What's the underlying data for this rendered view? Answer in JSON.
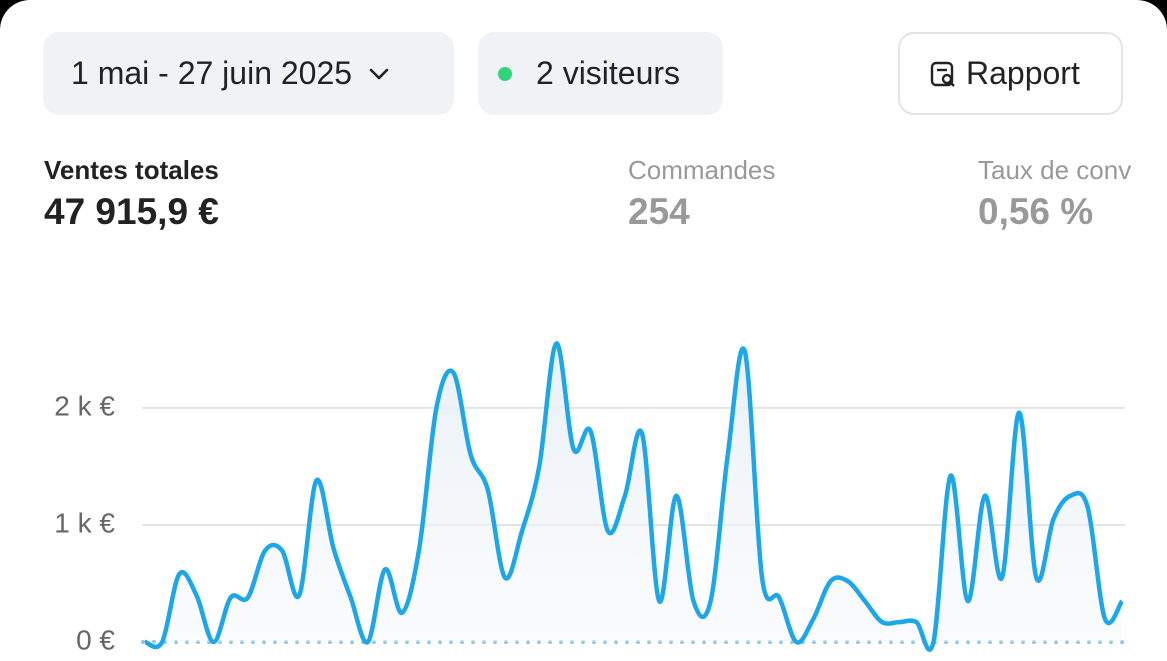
{
  "header": {
    "date_range": "1 mai - 27 juin 2025",
    "visitors": "2 visiteurs",
    "report_button": "Rapport"
  },
  "metrics": [
    {
      "label": "Ventes totales",
      "value": "47 915,9 €"
    },
    {
      "label": "Commandes",
      "value": "254"
    },
    {
      "label": "Taux de conv",
      "value": "0,56 %"
    }
  ],
  "chart_data": {
    "type": "line",
    "color": "#1ea7e8",
    "values": [
      0,
      0,
      580,
      400,
      0,
      380,
      380,
      780,
      780,
      400,
      1380,
      800,
      380,
      0,
      620,
      250,
      800,
      2000,
      2300,
      1600,
      1300,
      550,
      950,
      1500,
      2550,
      1650,
      1800,
      950,
      1250,
      1780,
      350,
      1250,
      350,
      350,
      1600,
      2480,
      550,
      380,
      0,
      200,
      520,
      520,
      350,
      170,
      170,
      170,
      0,
      1420,
      350,
      1250,
      550,
      1960,
      550,
      1050,
      1250,
      1150,
      200,
      350
    ],
    "ylim": [
      0,
      2700
    ],
    "yticks": [
      {
        "value": 0,
        "label": "0 €"
      },
      {
        "value": 1000,
        "label": "1 k €"
      },
      {
        "value": 2000,
        "label": "2 k €"
      }
    ],
    "grid": true
  }
}
